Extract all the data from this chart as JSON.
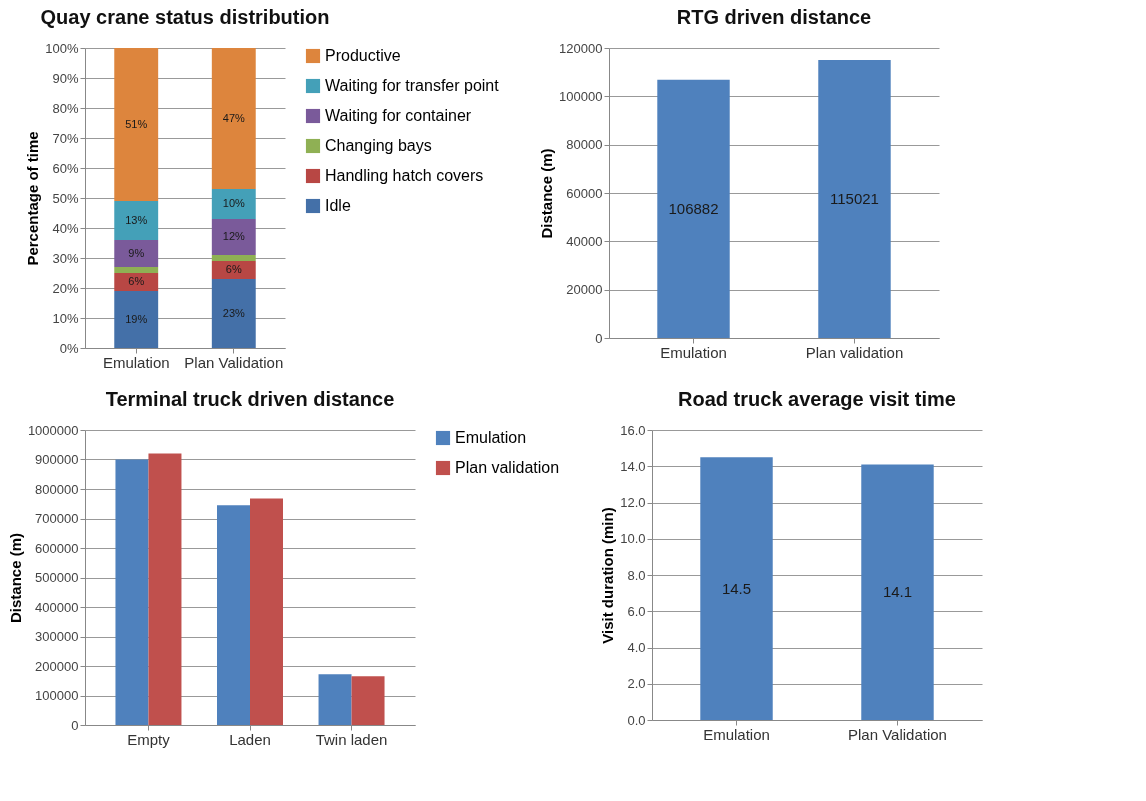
{
  "chart_data": [
    {
      "type": "bar",
      "title": "Quay crane status distribution",
      "ylabel": "Percentage of time",
      "categories": [
        "Emulation",
        "Plan Validation"
      ],
      "stacked": true,
      "legend": "right",
      "grid": "y",
      "ylim": [
        0,
        100
      ],
      "yticks": [
        {
          "value": 0,
          "label": "0%"
        },
        {
          "value": 10,
          "label": "10%"
        },
        {
          "value": 20,
          "label": "20%"
        },
        {
          "value": 30,
          "label": "30%"
        },
        {
          "value": 40,
          "label": "40%"
        },
        {
          "value": 50,
          "label": "50%"
        },
        {
          "value": 60,
          "label": "60%"
        },
        {
          "value": 70,
          "label": "70%"
        },
        {
          "value": 80,
          "label": "80%"
        },
        {
          "value": 90,
          "label": "90%"
        },
        {
          "value": 100,
          "label": "100%"
        }
      ],
      "series": [
        {
          "name": "Idle",
          "color": "#4470a8",
          "values": [
            19,
            23
          ],
          "value_labels": [
            "19%",
            "23%"
          ]
        },
        {
          "name": "Handling hatch covers",
          "color": "#b84744",
          "values": [
            6,
            6
          ],
          "value_labels": [
            "6%",
            "6%"
          ]
        },
        {
          "name": "Changing bays",
          "color": "#8fb054",
          "values": [
            2,
            2
          ],
          "value_labels": [
            null,
            null
          ]
        },
        {
          "name": "Waiting for container",
          "color": "#7a5a9a",
          "values": [
            9,
            12
          ],
          "value_labels": [
            "9%",
            "12%"
          ]
        },
        {
          "name": "Waiting for transfer point",
          "color": "#44a0b8",
          "values": [
            13,
            10
          ],
          "value_labels": [
            "13%",
            "10%"
          ]
        },
        {
          "name": "Productive",
          "color": "#dd853d",
          "values": [
            51,
            47
          ],
          "value_labels": [
            "51%",
            "47%"
          ]
        }
      ]
    },
    {
      "type": "bar",
      "title": "RTG driven distance",
      "ylabel": "Distance (m)",
      "categories": [
        "Emulation",
        "Plan validation"
      ],
      "grid": "y",
      "data_labels": true,
      "ylim": [
        0,
        120000
      ],
      "yticks": [
        0,
        20000,
        40000,
        60000,
        80000,
        100000,
        120000
      ],
      "series": [
        {
          "color": "#4f81bd",
          "values": [
            106882,
            115021
          ]
        }
      ]
    },
    {
      "type": "bar",
      "title": "Terminal truck driven distance",
      "ylabel": "Distance (m)",
      "categories": [
        "Empty",
        "Laden",
        "Twin laden"
      ],
      "grid": "y",
      "legend": "right",
      "ylim": [
        0,
        1000000
      ],
      "yticks": [
        0,
        100000,
        200000,
        300000,
        400000,
        500000,
        600000,
        700000,
        800000,
        900000,
        1000000
      ],
      "series": [
        {
          "name": "Emulation",
          "color": "#4f81bd",
          "values": [
            900000,
            745000,
            172000
          ]
        },
        {
          "name": "Plan validation",
          "color": "#c0504d",
          "values": [
            920000,
            768000,
            165000
          ]
        }
      ]
    },
    {
      "type": "bar",
      "title": "Road truck average visit time",
      "ylabel": "Visit duration (min)",
      "categories": [
        "Emulation",
        "Plan Validation"
      ],
      "grid": "y",
      "data_labels": true,
      "ylim": [
        0,
        16
      ],
      "yticks": [
        {
          "value": 0,
          "label": "0.0"
        },
        {
          "value": 2,
          "label": "2.0"
        },
        {
          "value": 4,
          "label": "4.0"
        },
        {
          "value": 6,
          "label": "6.0"
        },
        {
          "value": 8,
          "label": "8.0"
        },
        {
          "value": 10,
          "label": "10.0"
        },
        {
          "value": 12,
          "label": "12.0"
        },
        {
          "value": 14,
          "label": "14.0"
        },
        {
          "value": 16,
          "label": "16.0"
        }
      ],
      "series": [
        {
          "color": "#4f81bd",
          "values": [
            14.5,
            14.1
          ]
        }
      ]
    }
  ]
}
